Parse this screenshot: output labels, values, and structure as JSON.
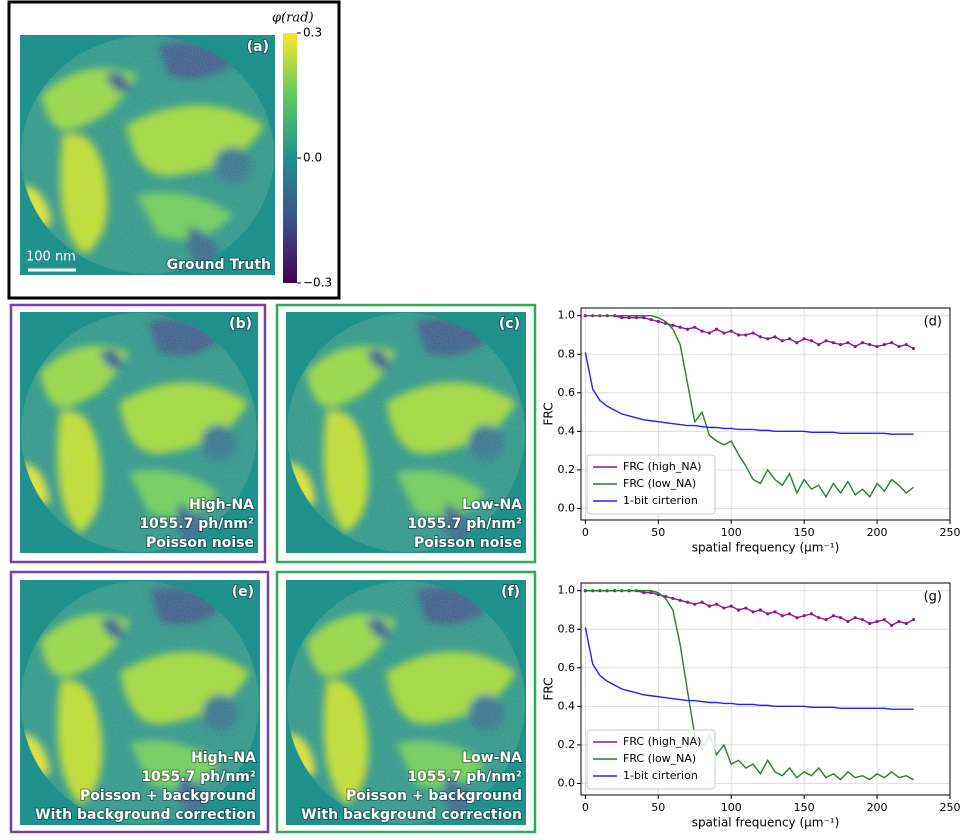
{
  "figure": {
    "panels": [
      {
        "label": "(a)",
        "lines": [
          "Ground Truth"
        ]
      },
      {
        "label": "(b)",
        "lines": [
          "High-NA",
          "1055.7 ph/nm²",
          "Poisson noise"
        ]
      },
      {
        "label": "(c)",
        "lines": [
          "Low-NA",
          "1055.7 ph/nm²",
          "Poisson noise"
        ]
      },
      {
        "label": "(e)",
        "lines": [
          "High-NA",
          "1055.7 ph/nm²",
          "Poisson + background",
          "With background correction"
        ]
      },
      {
        "label": "(f)",
        "lines": [
          "Low-NA",
          "1055.7 ph/nm²",
          "Poisson + background",
          "With background correction"
        ]
      }
    ],
    "scale_bar": "100 nm",
    "colorbar": {
      "title": "φ(rad)",
      "lim": [
        -0.3,
        0.3
      ],
      "ticks": [
        0.3,
        {
          "value": 0,
          "label": "0.0"
        },
        {
          "value": -0.3,
          "label": "−0.3"
        }
      ]
    }
  },
  "chart_data": [
    {
      "type": "line",
      "panel_label": "(d)",
      "xlabel": "spatial frequency (μm⁻¹)",
      "ylabel": "FRC",
      "xlim": [
        -3,
        250
      ],
      "ylim": [
        -0.06,
        1.04
      ],
      "xticks": [
        0,
        50,
        100,
        150,
        200,
        250
      ],
      "yticks": [
        {
          "value": 0,
          "label": "0.0"
        },
        0.2,
        0.4,
        0.6,
        0.8,
        {
          "value": 1,
          "label": "1.0"
        }
      ],
      "grid": true,
      "legend": "lower left",
      "x": [
        0,
        5,
        10,
        15,
        20,
        25,
        30,
        35,
        40,
        45,
        50,
        55,
        60,
        65,
        70,
        75,
        80,
        85,
        90,
        95,
        100,
        105,
        110,
        115,
        120,
        125,
        130,
        135,
        140,
        145,
        150,
        155,
        160,
        165,
        170,
        175,
        180,
        185,
        190,
        195,
        200,
        205,
        210,
        215,
        220,
        225
      ],
      "series": [
        {
          "name": "FRC (high_NA)",
          "color": "#8b1a8b",
          "marker": true,
          "values": [
            1.0,
            1.0,
            1.0,
            1.0,
            1.0,
            0.99,
            0.99,
            0.99,
            0.99,
            0.98,
            0.97,
            0.96,
            0.95,
            0.94,
            0.93,
            0.94,
            0.92,
            0.91,
            0.93,
            0.91,
            0.92,
            0.9,
            0.9,
            0.91,
            0.89,
            0.88,
            0.89,
            0.87,
            0.88,
            0.86,
            0.88,
            0.87,
            0.85,
            0.87,
            0.86,
            0.85,
            0.86,
            0.84,
            0.86,
            0.85,
            0.84,
            0.85,
            0.86,
            0.84,
            0.85,
            0.83
          ]
        },
        {
          "name": "FRC (low_NA)",
          "color": "#2a7d2a",
          "values": [
            1.0,
            1.0,
            1.0,
            1.0,
            1.0,
            1.0,
            1.0,
            1.0,
            1.0,
            1.0,
            0.99,
            0.97,
            0.93,
            0.85,
            0.65,
            0.45,
            0.5,
            0.38,
            0.35,
            0.33,
            0.35,
            0.28,
            0.22,
            0.15,
            0.13,
            0.2,
            0.15,
            0.12,
            0.18,
            0.08,
            0.15,
            0.1,
            0.12,
            0.06,
            0.13,
            0.08,
            0.14,
            0.07,
            0.1,
            0.06,
            0.13,
            0.09,
            0.15,
            0.12,
            0.08,
            0.11
          ]
        },
        {
          "name": "1-bit cirterion",
          "color": "#2222ff",
          "values": [
            0.81,
            0.62,
            0.56,
            0.53,
            0.51,
            0.49,
            0.48,
            0.47,
            0.46,
            0.455,
            0.45,
            0.445,
            0.44,
            0.435,
            0.43,
            0.43,
            0.425,
            0.42,
            0.42,
            0.415,
            0.415,
            0.41,
            0.41,
            0.41,
            0.405,
            0.405,
            0.4,
            0.4,
            0.4,
            0.4,
            0.4,
            0.395,
            0.395,
            0.395,
            0.395,
            0.39,
            0.39,
            0.39,
            0.39,
            0.39,
            0.39,
            0.39,
            0.385,
            0.385,
            0.385,
            0.385
          ]
        }
      ]
    },
    {
      "type": "line",
      "panel_label": "(g)",
      "xlabel": "spatial frequency (μm⁻¹)",
      "ylabel": "FRC",
      "xlim": [
        -3,
        250
      ],
      "ylim": [
        -0.06,
        1.04
      ],
      "xticks": [
        0,
        50,
        100,
        150,
        200,
        250
      ],
      "yticks": [
        {
          "value": 0,
          "label": "0.0"
        },
        0.2,
        0.4,
        0.6,
        0.8,
        {
          "value": 1,
          "label": "1.0"
        }
      ],
      "grid": true,
      "legend": "lower left",
      "x": [
        0,
        5,
        10,
        15,
        20,
        25,
        30,
        35,
        40,
        45,
        50,
        55,
        60,
        65,
        70,
        75,
        80,
        85,
        90,
        95,
        100,
        105,
        110,
        115,
        120,
        125,
        130,
        135,
        140,
        145,
        150,
        155,
        160,
        165,
        170,
        175,
        180,
        185,
        190,
        195,
        200,
        205,
        210,
        215,
        220,
        225
      ],
      "series": [
        {
          "name": "FRC (high_NA)",
          "color": "#8b1a8b",
          "marker": true,
          "values": [
            1.0,
            1.0,
            1.0,
            1.0,
            1.0,
            1.0,
            1.0,
            1.0,
            0.99,
            0.99,
            0.98,
            0.97,
            0.96,
            0.95,
            0.94,
            0.93,
            0.94,
            0.92,
            0.93,
            0.91,
            0.92,
            0.9,
            0.91,
            0.89,
            0.9,
            0.88,
            0.89,
            0.87,
            0.88,
            0.86,
            0.87,
            0.88,
            0.86,
            0.85,
            0.87,
            0.86,
            0.84,
            0.86,
            0.85,
            0.83,
            0.84,
            0.85,
            0.82,
            0.84,
            0.83,
            0.85
          ]
        },
        {
          "name": "FRC (low_NA)",
          "color": "#2a7d2a",
          "values": [
            1.0,
            1.0,
            1.0,
            1.0,
            1.0,
            1.0,
            1.0,
            1.0,
            1.0,
            1.0,
            0.99,
            0.96,
            0.9,
            0.72,
            0.48,
            0.25,
            0.18,
            0.25,
            0.15,
            0.2,
            0.1,
            0.12,
            0.08,
            0.1,
            0.05,
            0.12,
            0.06,
            0.04,
            0.08,
            0.03,
            0.06,
            0.04,
            0.08,
            0.03,
            0.05,
            0.02,
            0.06,
            0.03,
            0.04,
            0.02,
            0.05,
            0.03,
            0.06,
            0.03,
            0.04,
            0.02
          ]
        },
        {
          "name": "1-bit cirterion",
          "color": "#2222ff",
          "values": [
            0.81,
            0.62,
            0.56,
            0.53,
            0.51,
            0.49,
            0.48,
            0.47,
            0.46,
            0.455,
            0.45,
            0.445,
            0.44,
            0.435,
            0.43,
            0.43,
            0.425,
            0.42,
            0.42,
            0.415,
            0.415,
            0.41,
            0.41,
            0.41,
            0.405,
            0.405,
            0.4,
            0.4,
            0.4,
            0.4,
            0.4,
            0.395,
            0.395,
            0.395,
            0.395,
            0.39,
            0.39,
            0.39,
            0.39,
            0.39,
            0.39,
            0.39,
            0.385,
            0.385,
            0.385,
            0.385
          ]
        }
      ]
    }
  ]
}
